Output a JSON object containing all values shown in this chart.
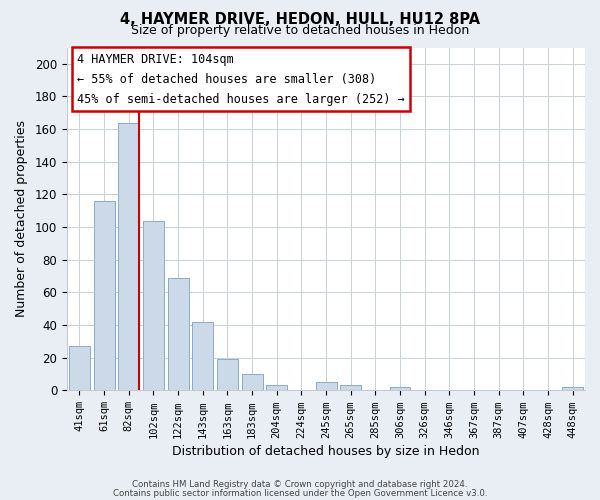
{
  "title": "4, HAYMER DRIVE, HEDON, HULL, HU12 8PA",
  "subtitle": "Size of property relative to detached houses in Hedon",
  "xlabel": "Distribution of detached houses by size in Hedon",
  "ylabel": "Number of detached properties",
  "bar_color": "#ccd9e8",
  "bar_edge_color": "#8aaac8",
  "vline_color": "#cc0000",
  "categories": [
    "41sqm",
    "61sqm",
    "82sqm",
    "102sqm",
    "122sqm",
    "143sqm",
    "163sqm",
    "183sqm",
    "204sqm",
    "224sqm",
    "245sqm",
    "265sqm",
    "285sqm",
    "306sqm",
    "326sqm",
    "346sqm",
    "367sqm",
    "387sqm",
    "407sqm",
    "428sqm",
    "448sqm"
  ],
  "values": [
    27,
    116,
    164,
    104,
    69,
    42,
    19,
    10,
    3,
    0,
    5,
    3,
    0,
    2,
    0,
    0,
    0,
    0,
    0,
    0,
    2
  ],
  "ylim": [
    0,
    210
  ],
  "yticks": [
    0,
    20,
    40,
    60,
    80,
    100,
    120,
    140,
    160,
    180,
    200
  ],
  "annotation_title": "4 HAYMER DRIVE: 104sqm",
  "annotation_line1": "← 55% of detached houses are smaller (308)",
  "annotation_line2": "45% of semi-detached houses are larger (252) →",
  "footer1": "Contains HM Land Registry data © Crown copyright and database right 2024.",
  "footer2": "Contains public sector information licensed under the Open Government Licence v3.0.",
  "background_color": "#e8eef4",
  "plot_background_color": "#ffffff"
}
